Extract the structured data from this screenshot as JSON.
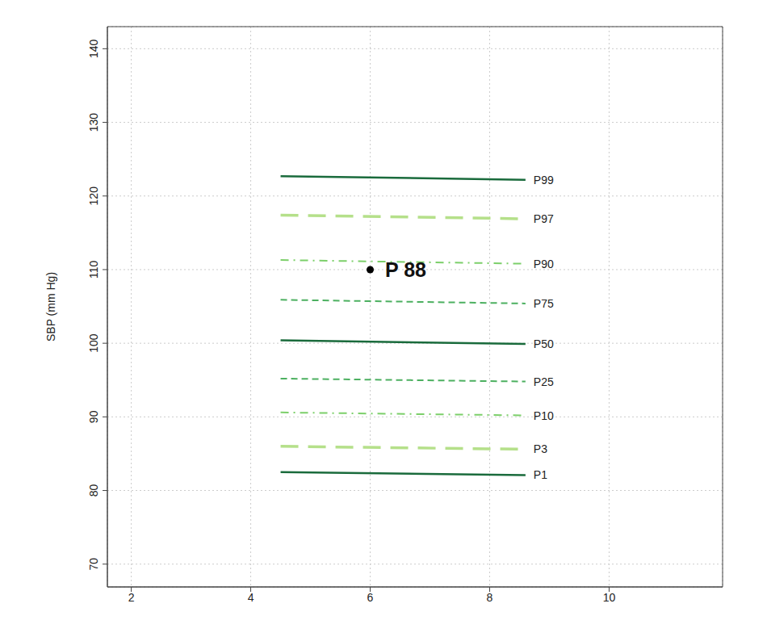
{
  "chart_data": {
    "type": "line",
    "ylabel": "SBP (mm Hg)",
    "xlim": [
      1.6,
      11.9
    ],
    "xticks": [
      2,
      4,
      6,
      8,
      10
    ],
    "ylim": [
      66.9,
      143
    ],
    "yticks": [
      70,
      80,
      90,
      100,
      110,
      120,
      130,
      140
    ],
    "grid": true,
    "series": [
      {
        "name": "P99",
        "color": "#1a6b3c",
        "line_style": "solid",
        "x": [
          4.5,
          8.6
        ],
        "values": [
          122.7,
          122.2
        ]
      },
      {
        "name": "P97",
        "color": "#b5e08a",
        "line_style": "longdash",
        "x": [
          4.5,
          8.6
        ],
        "values": [
          117.4,
          116.9
        ]
      },
      {
        "name": "P90",
        "color": "#7ccf6a",
        "line_style": "dotdash",
        "x": [
          4.5,
          8.6
        ],
        "values": [
          111.3,
          110.8
        ]
      },
      {
        "name": "P75",
        "color": "#4cb060",
        "line_style": "dashed",
        "x": [
          4.5,
          8.6
        ],
        "values": [
          105.9,
          105.4
        ]
      },
      {
        "name": "P50",
        "color": "#1a6b3c",
        "line_style": "solid",
        "x": [
          4.5,
          8.6
        ],
        "values": [
          100.4,
          99.9
        ]
      },
      {
        "name": "P25",
        "color": "#4cb060",
        "line_style": "dashed",
        "x": [
          4.5,
          8.6
        ],
        "values": [
          95.2,
          94.8
        ]
      },
      {
        "name": "P10",
        "color": "#7ccf6a",
        "line_style": "dotdash",
        "x": [
          4.5,
          8.6
        ],
        "values": [
          90.6,
          90.2
        ]
      },
      {
        "name": "P3",
        "color": "#b5e08a",
        "line_style": "longdash",
        "x": [
          4.5,
          8.6
        ],
        "values": [
          86.0,
          85.6
        ]
      },
      {
        "name": "P1",
        "color": "#1a6b3c",
        "line_style": "solid",
        "x": [
          4.5,
          8.6
        ],
        "values": [
          82.5,
          82.1
        ]
      },
      {
        "name": "P 88",
        "type": "scatter",
        "marker": "circle",
        "color": "#000000",
        "x": [
          6
        ],
        "values": [
          110
        ]
      }
    ]
  }
}
